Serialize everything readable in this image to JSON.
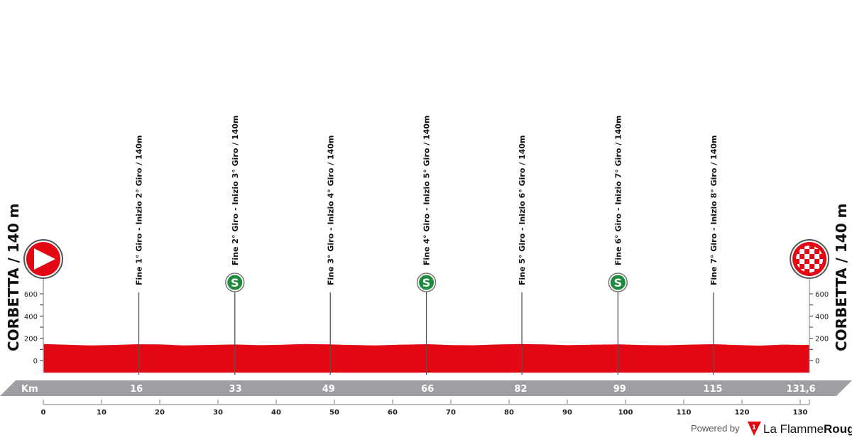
{
  "chart_data": {
    "type": "area",
    "xlabel": "Km",
    "xlim": [
      0,
      131.6
    ],
    "ylim": [
      -110,
      700
    ],
    "x_ticks": [
      0,
      10,
      20,
      30,
      40,
      50,
      60,
      70,
      80,
      90,
      100,
      110,
      120,
      130
    ],
    "y_ticks": [
      0,
      200,
      400,
      600
    ],
    "profile_color": "#e30613",
    "profile": {
      "km": [
        0,
        4,
        8,
        12,
        16,
        20,
        24,
        28,
        33,
        37,
        41,
        45,
        49,
        53,
        57,
        61,
        66,
        70,
        74,
        78,
        82,
        86,
        90,
        94,
        99,
        103,
        107,
        111,
        115,
        119,
        123,
        127,
        131.6
      ],
      "elevation_m": [
        148,
        142,
        136,
        140,
        146,
        145,
        136,
        140,
        144,
        138,
        142,
        148,
        145,
        140,
        136,
        142,
        147,
        139,
        137,
        144,
        148,
        145,
        138,
        142,
        145,
        139,
        137,
        143,
        147,
        140,
        134,
        143,
        140
      ]
    },
    "km_bar_labels": [
      {
        "km": 16,
        "label": "16"
      },
      {
        "km": 33,
        "label": "33"
      },
      {
        "km": 49,
        "label": "49"
      },
      {
        "km": 66,
        "label": "66"
      },
      {
        "km": 82,
        "label": "82"
      },
      {
        "km": 99,
        "label": "99"
      },
      {
        "km": 115,
        "label": "115"
      },
      {
        "km": 131.6,
        "label": "131,6"
      }
    ],
    "markers": [
      {
        "km": 16.4,
        "label": "Fine 1° Giro - Inizio 2° Giro / 140m",
        "sprint": false
      },
      {
        "km": 32.9,
        "label": "Fine 2° Giro - Inizio 3° Giro / 140m",
        "sprint": true
      },
      {
        "km": 49.3,
        "label": "Fine 3° Giro - Inizio 4° Giro / 140m",
        "sprint": false
      },
      {
        "km": 65.8,
        "label": "Fine 4° Giro - Inizio 5° Giro / 140m",
        "sprint": true
      },
      {
        "km": 82.2,
        "label": "Fine 5° Giro - Inizio 6° Giro / 140m",
        "sprint": false
      },
      {
        "km": 98.7,
        "label": "Fine 6° Giro - Inizio 7° Giro / 140m",
        "sprint": true
      },
      {
        "km": 115.1,
        "label": "Fine 7° Giro - Inizio 8° Giro / 140m",
        "sprint": false
      }
    ],
    "sprint_icon_letter": "S",
    "sprint_color": "#1e8a3c",
    "start": {
      "town": "CORBETTA / 140 m",
      "icon": "start-arrow-icon"
    },
    "finish": {
      "town": "CORBETTA / 140 m",
      "icon": "checkered-flag-icon"
    }
  },
  "footer": {
    "powered_by": "Powered by",
    "brand_a": "La Flamme",
    "brand_b": "Rouge",
    "logo_digit": "1"
  }
}
